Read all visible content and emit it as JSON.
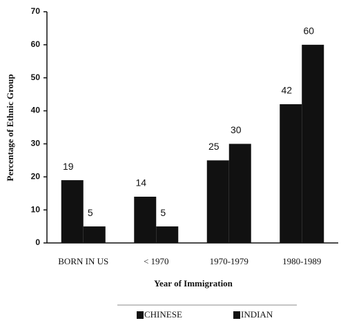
{
  "chart_data": {
    "type": "bar",
    "y_label": "Percentage of Ethnic Group",
    "x_label": "Year of Immigration",
    "categories": [
      "BORN IN US",
      "< 1970",
      "1970-1979",
      "1980-1989"
    ],
    "series": [
      {
        "name": "CHINESE",
        "color": "#111111",
        "values": [
          19,
          14,
          25,
          42
        ]
      },
      {
        "name": "INDIAN",
        "color": "#111111",
        "values": [
          5,
          5,
          30,
          60
        ]
      }
    ],
    "ylim": [
      0,
      70
    ],
    "yticks": [
      0,
      10,
      20,
      30,
      40,
      50,
      60,
      70
    ],
    "legend": "bottom"
  }
}
